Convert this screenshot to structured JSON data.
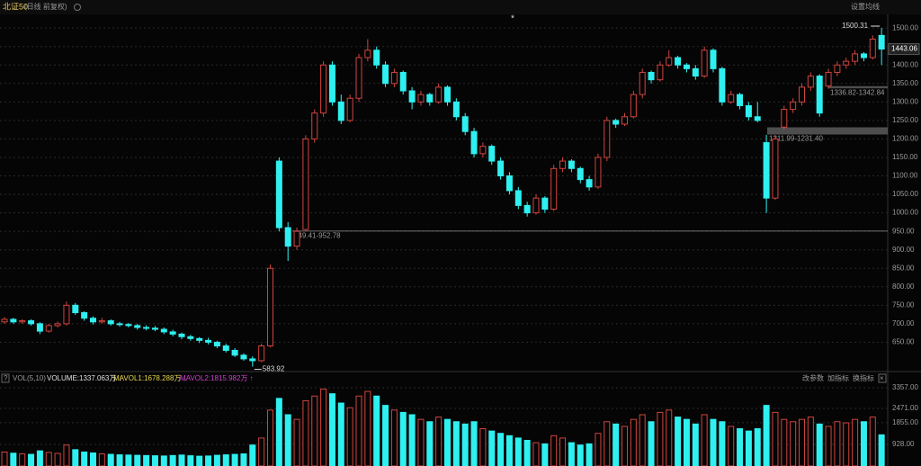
{
  "chart_data": {
    "type": "candlestick",
    "title": "北证50",
    "subtitle": "(日线 前复权)",
    "menu": "设置均线",
    "marker": "*",
    "up_color": "#d0443e",
    "down_color": "#2ff0f0",
    "ylim": [
      578,
      1532
    ],
    "yticks": [
      {
        "value": 650,
        "label": "650.00"
      },
      {
        "value": 700,
        "label": "700.00"
      },
      {
        "value": 750,
        "label": "750.00"
      },
      {
        "value": 800,
        "label": "800.00"
      },
      {
        "value": 850,
        "label": "850.00"
      },
      {
        "value": 900,
        "label": "900.00"
      },
      {
        "value": 950,
        "label": "950.00"
      },
      {
        "value": 1000,
        "label": "1000.00"
      },
      {
        "value": 1050,
        "label": "1050.00"
      },
      {
        "value": 1100,
        "label": "1100.00"
      },
      {
        "value": 1150,
        "label": "1150.00"
      },
      {
        "value": 1200,
        "label": "1200.00"
      },
      {
        "value": 1250,
        "label": "1250.00"
      },
      {
        "value": 1300,
        "label": "1300.00"
      },
      {
        "value": 1350,
        "label": "1350.00"
      },
      {
        "value": 1400,
        "label": "1400.00"
      },
      {
        "value": 1450,
        "label": "1450.00"
      },
      {
        "value": 1500,
        "label": "1500.00"
      }
    ],
    "grid": true,
    "gaps": [
      {
        "label": "949.41-952.78",
        "values": [
          949.41,
          952.78
        ]
      },
      {
        "label": "1211.99-1231.40",
        "values": [
          1211.99,
          1231.4
        ]
      },
      {
        "label": "1336.82-1342.84",
        "values": [
          1336.82,
          1342.84
        ]
      }
    ],
    "candles": [
      [
        705,
        718,
        700,
        712
      ],
      [
        712,
        716,
        700,
        705
      ],
      [
        705,
        712,
        700,
        708
      ],
      [
        708,
        712,
        695,
        700
      ],
      [
        700,
        704,
        672,
        680
      ],
      [
        680,
        700,
        676,
        695
      ],
      [
        695,
        706,
        690,
        700
      ],
      [
        700,
        760,
        695,
        750
      ],
      [
        750,
        756,
        724,
        730
      ],
      [
        730,
        734,
        708,
        715
      ],
      [
        715,
        720,
        698,
        705
      ],
      [
        705,
        716,
        700,
        708
      ],
      [
        708,
        712,
        695,
        700
      ],
      [
        700,
        705,
        692,
        698
      ],
      [
        698,
        702,
        690,
        695
      ],
      [
        695,
        700,
        684,
        690
      ],
      [
        690,
        696,
        682,
        688
      ],
      [
        688,
        694,
        680,
        685
      ],
      [
        685,
        690,
        672,
        678
      ],
      [
        678,
        684,
        666,
        672
      ],
      [
        672,
        676,
        658,
        665
      ],
      [
        665,
        670,
        654,
        660
      ],
      [
        660,
        664,
        648,
        655
      ],
      [
        655,
        662,
        644,
        650
      ],
      [
        650,
        654,
        634,
        640
      ],
      [
        640,
        646,
        622,
        628
      ],
      [
        628,
        634,
        610,
        615
      ],
      [
        615,
        620,
        600,
        605
      ],
      [
        605,
        612,
        583.92,
        600
      ],
      [
        600,
        646,
        596,
        640
      ],
      [
        640,
        860,
        636,
        850
      ],
      [
        1140,
        1150,
        950,
        960
      ],
      [
        960,
        975,
        870,
        910
      ],
      [
        910,
        960,
        900,
        950
      ],
      [
        955,
        1210,
        950,
        1200
      ],
      [
        1200,
        1280,
        1190,
        1270
      ],
      [
        1270,
        1410,
        1260,
        1400
      ],
      [
        1400,
        1410,
        1290,
        1300
      ],
      [
        1300,
        1320,
        1240,
        1250
      ],
      [
        1250,
        1320,
        1245,
        1310
      ],
      [
        1310,
        1430,
        1300,
        1420
      ],
      [
        1420,
        1470,
        1410,
        1440
      ],
      [
        1440,
        1450,
        1390,
        1400
      ],
      [
        1400,
        1410,
        1340,
        1350
      ],
      [
        1350,
        1390,
        1340,
        1380
      ],
      [
        1380,
        1385,
        1320,
        1330
      ],
      [
        1330,
        1340,
        1280,
        1300
      ],
      [
        1300,
        1330,
        1290,
        1320
      ],
      [
        1320,
        1325,
        1290,
        1300
      ],
      [
        1300,
        1350,
        1295,
        1340
      ],
      [
        1340,
        1345,
        1290,
        1300
      ],
      [
        1300,
        1310,
        1250,
        1260
      ],
      [
        1260,
        1270,
        1210,
        1220
      ],
      [
        1220,
        1230,
        1150,
        1160
      ],
      [
        1160,
        1190,
        1150,
        1180
      ],
      [
        1180,
        1185,
        1130,
        1140
      ],
      [
        1140,
        1150,
        1090,
        1100
      ],
      [
        1100,
        1110,
        1050,
        1060
      ],
      [
        1060,
        1070,
        1010,
        1020
      ],
      [
        1020,
        1030,
        990,
        1000
      ],
      [
        1000,
        1050,
        995,
        1040
      ],
      [
        1040,
        1045,
        1000,
        1010
      ],
      [
        1010,
        1130,
        1005,
        1120
      ],
      [
        1120,
        1150,
        1110,
        1140
      ],
      [
        1140,
        1145,
        1110,
        1120
      ],
      [
        1120,
        1125,
        1080,
        1090
      ],
      [
        1090,
        1100,
        1060,
        1070
      ],
      [
        1070,
        1160,
        1065,
        1150
      ],
      [
        1150,
        1260,
        1140,
        1250
      ],
      [
        1250,
        1255,
        1230,
        1240
      ],
      [
        1240,
        1270,
        1235,
        1260
      ],
      [
        1260,
        1330,
        1255,
        1320
      ],
      [
        1320,
        1390,
        1310,
        1380
      ],
      [
        1380,
        1385,
        1350,
        1360
      ],
      [
        1360,
        1410,
        1355,
        1400
      ],
      [
        1400,
        1440,
        1395,
        1420
      ],
      [
        1420,
        1425,
        1390,
        1400
      ],
      [
        1400,
        1405,
        1380,
        1390
      ],
      [
        1390,
        1400,
        1360,
        1370
      ],
      [
        1370,
        1450,
        1365,
        1440
      ],
      [
        1440,
        1445,
        1380,
        1390
      ],
      [
        1390,
        1395,
        1290,
        1300
      ],
      [
        1300,
        1330,
        1295,
        1320
      ],
      [
        1320,
        1325,
        1280,
        1290
      ],
      [
        1290,
        1300,
        1250,
        1260
      ],
      [
        1260,
        1300,
        1245,
        1250
      ],
      [
        1190,
        1211,
        1000,
        1040
      ],
      [
        1040,
        1210,
        1035,
        1200
      ],
      [
        1232,
        1290,
        1225,
        1280
      ],
      [
        1280,
        1310,
        1270,
        1300
      ],
      [
        1300,
        1350,
        1290,
        1340
      ],
      [
        1340,
        1380,
        1330,
        1370
      ],
      [
        1370,
        1375,
        1260,
        1270
      ],
      [
        1343,
        1390,
        1336,
        1380
      ],
      [
        1380,
        1410,
        1370,
        1400
      ],
      [
        1400,
        1420,
        1390,
        1410
      ],
      [
        1410,
        1440,
        1400,
        1430
      ],
      [
        1430,
        1435,
        1410,
        1420
      ],
      [
        1420,
        1480,
        1415,
        1470
      ],
      [
        1480,
        1500.31,
        1400,
        1443.06
      ]
    ],
    "volume_panel": {
      "title": "VOL(5,10)",
      "volume": "VOLUME:1337.063万 ↓",
      "mavol1": "MAVOL1:1678.288万 ↓",
      "mavol2": "MAVOL2:1815.982万 ↑",
      "buttons": [
        "改参数",
        "加指标",
        "换指标"
      ],
      "ylim": [
        0,
        3550
      ],
      "yticks": [
        {
          "value": 928,
          "label": "928.00"
        },
        {
          "value": 1855,
          "label": "1855.00"
        },
        {
          "value": 2471,
          "label": "2471.00"
        },
        {
          "value": 3357,
          "label": "3357.00"
        }
      ],
      "values": [
        600,
        550,
        520,
        500,
        650,
        580,
        540,
        900,
        700,
        600,
        560,
        520,
        500,
        480,
        470,
        460,
        450,
        440,
        430,
        450,
        470,
        440,
        420,
        430,
        460,
        480,
        500,
        520,
        900,
        1200,
        2400,
        2900,
        2200,
        2000,
        2800,
        3000,
        3300,
        3100,
        2700,
        2500,
        3000,
        3200,
        3000,
        2600,
        2400,
        2300,
        2200,
        2000,
        1900,
        2100,
        2000,
        1900,
        1800,
        1900,
        1600,
        1500,
        1400,
        1300,
        1200,
        1100,
        1000,
        950,
        1300,
        1200,
        1000,
        900,
        950,
        1400,
        1900,
        1800,
        1700,
        2000,
        2200,
        1900,
        2300,
        2400,
        2100,
        2000,
        1800,
        2200,
        2000,
        1900,
        1700,
        1600,
        1500,
        1600,
        2600,
        2300,
        2000,
        1900,
        2000,
        2100,
        1800,
        1700,
        1900,
        1850,
        2000,
        1900,
        2100,
        1337.063
      ]
    }
  }
}
